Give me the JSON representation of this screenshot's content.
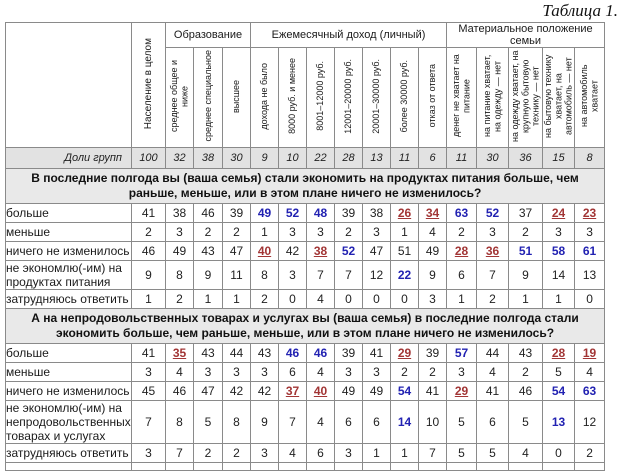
{
  "title": "Таблица 1.",
  "colors": {
    "significantly_higher": "#2222b2",
    "significantly_lower": "#a23535",
    "shade_row": "#e2e2e2",
    "question_row": "#e9e9e9",
    "grid": "#8a8a8a"
  },
  "table": {
    "population_column": "Население в целом",
    "share_label": "Доли групп",
    "share_values": [
      "100",
      "32",
      "38",
      "30",
      "9",
      "10",
      "22",
      "28",
      "13",
      "11",
      "6",
      "11",
      "30",
      "36",
      "15",
      "8"
    ],
    "groups": [
      {
        "label": "Образование",
        "columns": [
          "среднее общее и ниже",
          "среднее специальное",
          "высшее"
        ]
      },
      {
        "label": "Ежемесячный доход (личный)",
        "columns": [
          "дохода не было",
          "8000 руб. и менее",
          "8001–12000 руб.",
          "12001–20000 руб.",
          "20001–30000 руб.",
          "более 30000 руб.",
          "отказ от ответа"
        ]
      },
      {
        "label": "Материальное положение семьи",
        "columns": [
          "денег не хватает на питание",
          "на питание хватает, на одежду — нет",
          "на одежду хватает, на крупную бытовую технику — нет",
          "на бытовую технику хватает, на автомобиль — нет",
          "на автомобиль хватает"
        ]
      }
    ],
    "value_legend": {
      "suffix_plus": "significantly higher (blue bold)",
      "suffix_minus": "significantly lower (red underlined)"
    },
    "sections": [
      {
        "question": "В последние полгода вы (ваша семья) стали экономить на продуктах питания больше, чем раньше, меньше, или в этом плане ничего не изменилось?",
        "rows": [
          {
            "label": "больше",
            "values": [
              "41",
              "38",
              "46",
              "39",
              "49+",
              "52+",
              "48+",
              "39",
              "38",
              "26-",
              "34-",
              "63+",
              "52+",
              "37",
              "24-",
              "23-"
            ]
          },
          {
            "label": "меньше",
            "values": [
              "2",
              "3",
              "2",
              "2",
              "1",
              "3",
              "3",
              "2",
              "3",
              "1",
              "4",
              "2",
              "3",
              "2",
              "3",
              "3"
            ]
          },
          {
            "label": "ничего не изменилось",
            "values": [
              "46",
              "49",
              "43",
              "47",
              "40-",
              "42",
              "38-",
              "52+",
              "47",
              "51",
              "49",
              "28-",
              "36-",
              "51+",
              "58+",
              "61+"
            ]
          },
          {
            "label": "не экономлю(-им) на продуктах питания",
            "values": [
              "9",
              "8",
              "9",
              "11",
              "8",
              "3",
              "7",
              "7",
              "12",
              "22+",
              "9",
              "6",
              "7",
              "9",
              "14",
              "13"
            ]
          },
          {
            "label": "затрудняюсь ответить",
            "values": [
              "1",
              "2",
              "1",
              "1",
              "2",
              "0",
              "4",
              "0",
              "0",
              "0",
              "3",
              "1",
              "2",
              "1",
              "1",
              "0"
            ]
          }
        ]
      },
      {
        "question": "А на непродовольственных товарах и услугах вы (ваша семья) в последние полгода стали экономить больше, чем раньше, меньше, или в этом плане ничего не изменилось?",
        "rows": [
          {
            "label": "больше",
            "values": [
              "41",
              "35-",
              "43",
              "44",
              "43",
              "46+",
              "46+",
              "39",
              "41",
              "29-",
              "39",
              "57+",
              "44",
              "43",
              "28-",
              "19-"
            ]
          },
          {
            "label": "меньше",
            "values": [
              "3",
              "4",
              "3",
              "3",
              "3",
              "6",
              "4",
              "3",
              "3",
              "2",
              "2",
              "3",
              "4",
              "2",
              "5",
              "4"
            ]
          },
          {
            "label": "ничего не изменилось",
            "values": [
              "45",
              "46",
              "47",
              "42",
              "42",
              "37-",
              "40-",
              "49",
              "49",
              "54+",
              "41",
              "29-",
              "41",
              "46",
              "54+",
              "63+"
            ]
          },
          {
            "label": "не экономлю(-им) на непродовольственных товарах и услугах",
            "values": [
              "7",
              "8",
              "5",
              "8",
              "9",
              "7",
              "4",
              "6",
              "6",
              "14+",
              "10",
              "5",
              "6",
              "5",
              "13+",
              "12"
            ]
          },
          {
            "label": "затрудняюсь ответить",
            "values": [
              "3",
              "7",
              "2",
              "2",
              "3",
              "4",
              "6",
              "3",
              "1",
              "1",
              "7",
              "5",
              "5",
              "4",
              "0",
              "2"
            ]
          }
        ]
      }
    ]
  }
}
